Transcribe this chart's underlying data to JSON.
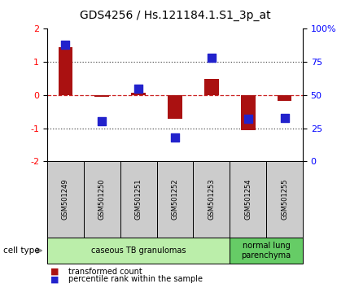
{
  "title": "GDS4256 / Hs.121184.1.S1_3p_at",
  "samples": [
    "GSM501249",
    "GSM501250",
    "GSM501251",
    "GSM501252",
    "GSM501253",
    "GSM501254",
    "GSM501255"
  ],
  "transformed_count": [
    1.45,
    -0.05,
    0.08,
    -0.72,
    0.48,
    -1.05,
    -0.18
  ],
  "percentile_rank": [
    88,
    30,
    55,
    18,
    78,
    32,
    33
  ],
  "ylim_left": [
    -2,
    2
  ],
  "ylim_right": [
    0,
    100
  ],
  "yticks_left": [
    -2,
    -1,
    0,
    1,
    2
  ],
  "yticks_right": [
    0,
    25,
    50,
    75,
    100
  ],
  "ytick_labels_right": [
    "0",
    "25",
    "50",
    "75",
    "100%"
  ],
  "cell_types": [
    {
      "label": "caseous TB granulomas",
      "samples": [
        0,
        1,
        2,
        3,
        4
      ],
      "color": "#bbeeaa"
    },
    {
      "label": "normal lung\nparenchyma",
      "samples": [
        5,
        6
      ],
      "color": "#66cc66"
    }
  ],
  "bar_color": "#aa1111",
  "dot_color": "#2222cc",
  "bar_width": 0.4,
  "dot_size": 55,
  "legend_bar_label": "transformed count",
  "legend_dot_label": "percentile rank within the sample",
  "cell_type_label": "cell type",
  "bg_color": "#ffffff",
  "plot_bg": "#ffffff",
  "dashed_zero_color": "#cc2222",
  "dotted_line_color": "#555555",
  "sample_box_color": "#cccccc"
}
